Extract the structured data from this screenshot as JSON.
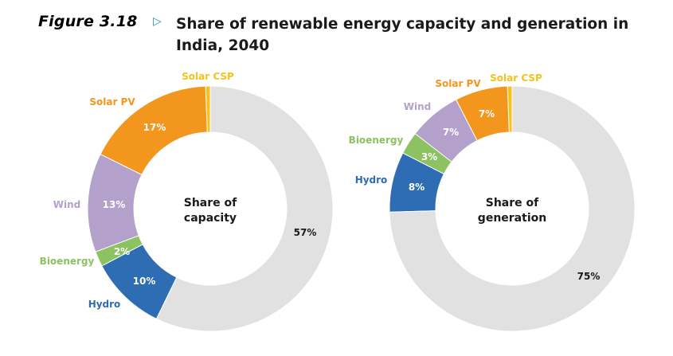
{
  "figure": {
    "label": "Figure 3.18",
    "arrow_icon": "triangle-right-icon",
    "title": "Share of renewable energy capacity and generation in India, 2040"
  },
  "colors": {
    "Hydro": "#2e6db4",
    "Bioenergy": "#8dc262",
    "Wind": "#b3a0cb",
    "Solar PV": "#f2961d",
    "Solar CSP": "#f5c21b",
    "Other": "#e1e1e1"
  },
  "chart_data": [
    {
      "type": "pie",
      "donut": true,
      "center_label": [
        "Share of",
        "capacity"
      ],
      "slices": [
        {
          "name": "Hydro",
          "value": 10,
          "label": "10%"
        },
        {
          "name": "Bioenergy",
          "value": 2,
          "label": "2%"
        },
        {
          "name": "Wind",
          "value": 13,
          "label": "13%"
        },
        {
          "name": "Solar PV",
          "value": 17,
          "label": "17%"
        },
        {
          "name": "Solar CSP",
          "value": 0.6,
          "label": ""
        },
        {
          "name": "",
          "value": 57,
          "label": "57%"
        }
      ]
    },
    {
      "type": "pie",
      "donut": true,
      "center_label": [
        "Share of",
        "generation"
      ],
      "slices": [
        {
          "name": "Hydro",
          "value": 8,
          "label": "8%"
        },
        {
          "name": "Bioenergy",
          "value": 3,
          "label": "3%"
        },
        {
          "name": "Wind",
          "value": 7,
          "label": "7%"
        },
        {
          "name": "Solar PV",
          "value": 7,
          "label": "7%"
        },
        {
          "name": "Solar CSP",
          "value": 0.6,
          "label": ""
        },
        {
          "name": "",
          "value": 75,
          "label": "75%"
        }
      ]
    }
  ]
}
